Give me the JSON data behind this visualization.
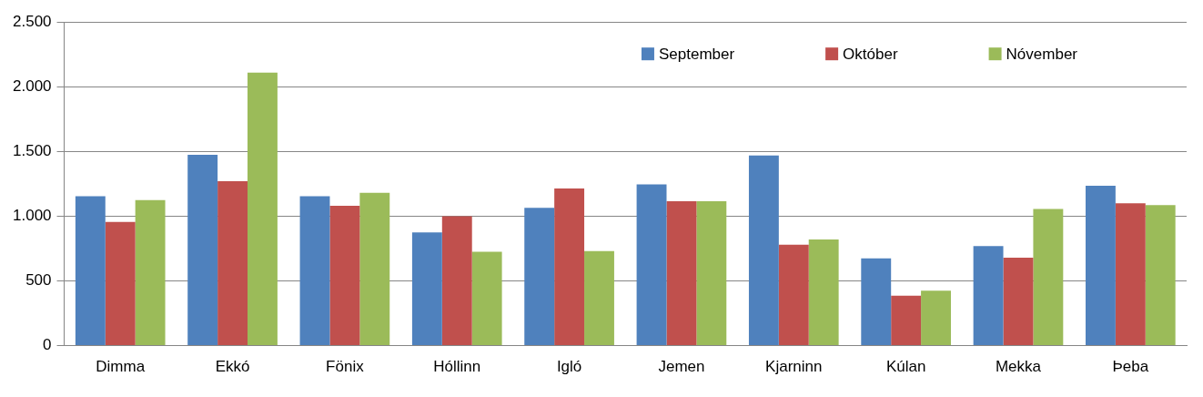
{
  "chart_data": {
    "type": "bar",
    "categories": [
      "Dimma",
      "Ekkó",
      "Fönix",
      "Hóllinn",
      "Igló",
      "Jemen",
      "Kjarninn",
      "Kúlan",
      "Mekka",
      "Þeba"
    ],
    "series": [
      {
        "name": "September",
        "color": "#4f81bd",
        "values": [
          1155,
          1475,
          1155,
          875,
          1065,
          1245,
          1470,
          675,
          770,
          1235
        ]
      },
      {
        "name": "Október",
        "color": "#c0504d",
        "values": [
          955,
          1270,
          1080,
          1000,
          1215,
          1115,
          780,
          385,
          680,
          1100
        ]
      },
      {
        "name": "Nóvember",
        "color": "#9bbb59",
        "values": [
          1125,
          2110,
          1180,
          725,
          730,
          1115,
          820,
          425,
          1055,
          1085
        ]
      }
    ],
    "ylim": [
      0,
      2500
    ],
    "yticks": [
      0,
      {
        "value": 500,
        "label": "500"
      },
      {
        "value": 1000,
        "label": "1.000"
      },
      {
        "value": 1500,
        "label": "1.500"
      },
      {
        "value": 2000,
        "label": "2.000"
      },
      {
        "value": 2500,
        "label": "2.500"
      }
    ],
    "grid": "y",
    "legend": "top right"
  }
}
